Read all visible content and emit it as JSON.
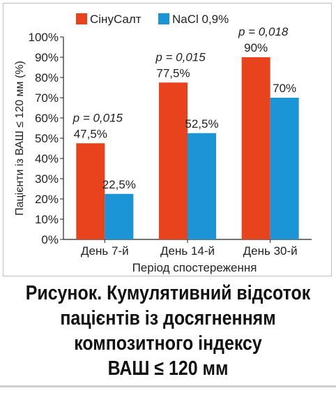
{
  "chart_data": {
    "type": "bar",
    "categories": [
      "День 7-й",
      "День 14-й",
      "День 30-й"
    ],
    "series": [
      {
        "name": "СінуСалт",
        "values": [
          47.5,
          77.5,
          90
        ],
        "labels": [
          "47,5%",
          "77,5%",
          "90%"
        ],
        "color": "#e8431c"
      },
      {
        "name": "NaCl 0,9%",
        "values": [
          22.5,
          52.5,
          70
        ],
        "labels": [
          "22,5%",
          "52,5%",
          "70%"
        ],
        "color": "#1b95d6"
      }
    ],
    "annotations": [
      "p = 0,015",
      "p = 0,015",
      "p = 0,018"
    ],
    "xlabel": "Період спостереження",
    "ylabel": "Пацієнти із ВАШ ≤ 120 мм (%)",
    "ylim": [
      0,
      100
    ],
    "yticks": [
      "0%",
      "10%",
      "20%",
      "30%",
      "40%",
      "50%",
      "60%",
      "70%",
      "80%",
      "90%",
      "100%"
    ],
    "grid": false,
    "legend": "top-left"
  },
  "caption": {
    "line1": "Рисунок. Кумулятивний відсоток",
    "line2": "пацієнтів із досягненням",
    "line3": "композитного індексу",
    "line4": "ВАШ ≤ 120 мм"
  }
}
